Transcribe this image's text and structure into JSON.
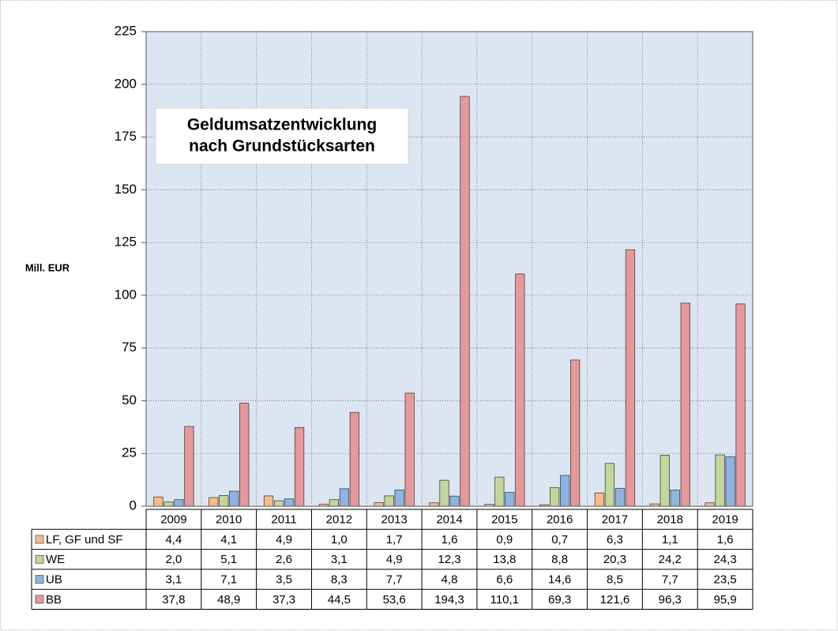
{
  "chart_data": {
    "type": "bar",
    "title": [
      "Geldumsatzentwicklung",
      "nach Grundstücksarten"
    ],
    "y_label": "Mill. EUR",
    "categories": [
      "2009",
      "2010",
      "2011",
      "2012",
      "2013",
      "2014",
      "2015",
      "2016",
      "2017",
      "2018",
      "2019"
    ],
    "series": [
      {
        "name": "LF, GF und SF",
        "color": "#f9b98b",
        "values": [
          4.4,
          4.1,
          4.9,
          1.0,
          1.7,
          1.6,
          0.9,
          0.7,
          6.3,
          1.1,
          1.6
        ],
        "value_labels": [
          "4,4",
          "4,1",
          "4,9",
          "1,0",
          "1,7",
          "1,6",
          "0,9",
          "0,7",
          "6,3",
          "1,1",
          "1,6"
        ]
      },
      {
        "name": "WE",
        "color": "#c3d69b",
        "values": [
          2.0,
          5.1,
          2.6,
          3.1,
          4.9,
          12.3,
          13.8,
          8.8,
          20.3,
          24.2,
          24.3
        ],
        "value_labels": [
          "2,0",
          "5,1",
          "2,6",
          "3,1",
          "4,9",
          "12,3",
          "13,8",
          "8,8",
          "20,3",
          "24,2",
          "24,3"
        ]
      },
      {
        "name": "UB",
        "color": "#8eb4e3",
        "values": [
          3.1,
          7.1,
          3.5,
          8.3,
          7.7,
          4.8,
          6.6,
          14.6,
          8.5,
          7.7,
          23.5
        ],
        "value_labels": [
          "3,1",
          "7,1",
          "3,5",
          "8,3",
          "7,7",
          "4,8",
          "6,6",
          "14,6",
          "8,5",
          "7,7",
          "23,5"
        ]
      },
      {
        "name": "BB",
        "color": "#e6989a",
        "values": [
          37.8,
          48.9,
          37.3,
          44.5,
          53.6,
          194.3,
          110.1,
          69.3,
          121.6,
          96.3,
          95.9
        ],
        "value_labels": [
          "37,8",
          "48,9",
          "37,3",
          "44,5",
          "53,6",
          "194,3",
          "110,1",
          "69,3",
          "121,6",
          "96,3",
          "95,9"
        ]
      }
    ],
    "ylim": [
      0,
      225
    ],
    "yticks": [
      0,
      25,
      50,
      75,
      100,
      125,
      150,
      175,
      200,
      225
    ],
    "grid": true
  }
}
